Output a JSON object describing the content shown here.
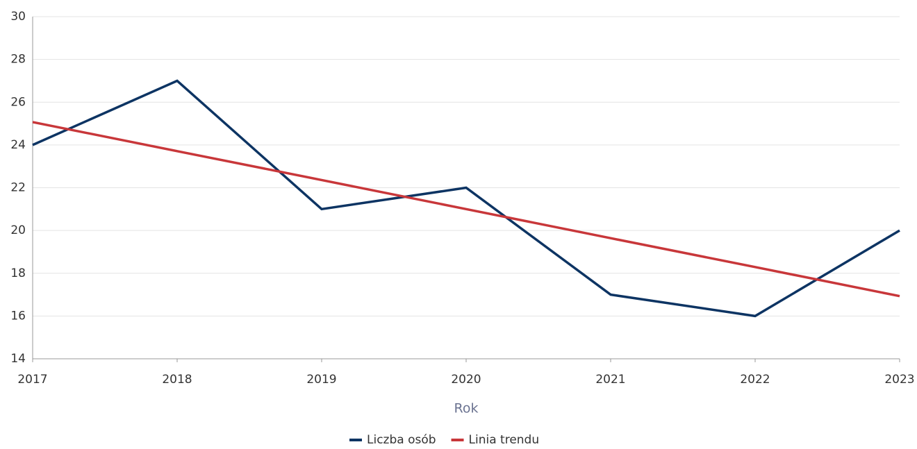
{
  "chart_data": {
    "type": "line",
    "x_label": "Rok",
    "x": [
      2017,
      2018,
      2019,
      2020,
      2021,
      2022,
      2023
    ],
    "series": [
      {
        "name": "Liczba osób",
        "color": "#0d3463",
        "values": [
          24,
          27,
          21,
          22,
          17,
          16,
          20
        ]
      },
      {
        "name": "Linia trendu",
        "color": "#c8373a",
        "values": [
          25.07,
          23.71,
          22.36,
          21,
          19.64,
          18.29,
          16.93
        ]
      }
    ],
    "xlim": [
      2017,
      2023
    ],
    "xticks": [
      2017,
      2018,
      2019,
      2020,
      2021,
      2022,
      2023
    ],
    "ylim": [
      14,
      30
    ],
    "yticks": [
      14,
      16,
      18,
      20,
      22,
      24,
      26,
      28,
      30
    ],
    "grid": true,
    "legend": "bottom"
  }
}
